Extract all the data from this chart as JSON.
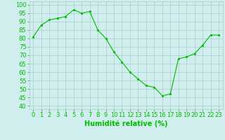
{
  "x": [
    0,
    1,
    2,
    3,
    4,
    5,
    6,
    7,
    8,
    9,
    10,
    11,
    12,
    13,
    14,
    15,
    16,
    17,
    18,
    19,
    20,
    21,
    22,
    23
  ],
  "y": [
    81,
    88,
    91,
    92,
    93,
    97,
    95,
    96,
    85,
    80,
    72,
    66,
    60,
    56,
    52,
    51,
    46,
    47,
    68,
    69,
    71,
    76,
    82,
    82
  ],
  "line_color": "#00bb00",
  "marker_color": "#00bb00",
  "bg_color": "#d0eeee",
  "grid_color": "#aacccc",
  "xlabel": "Humidité relative (%)",
  "xlabel_color": "#00bb00",
  "ylabel_ticks": [
    40,
    45,
    50,
    55,
    60,
    65,
    70,
    75,
    80,
    85,
    90,
    95,
    100
  ],
  "ylim": [
    38,
    102
  ],
  "xlim": [
    -0.5,
    23.5
  ],
  "tick_fontsize": 6,
  "xlabel_fontsize": 7
}
